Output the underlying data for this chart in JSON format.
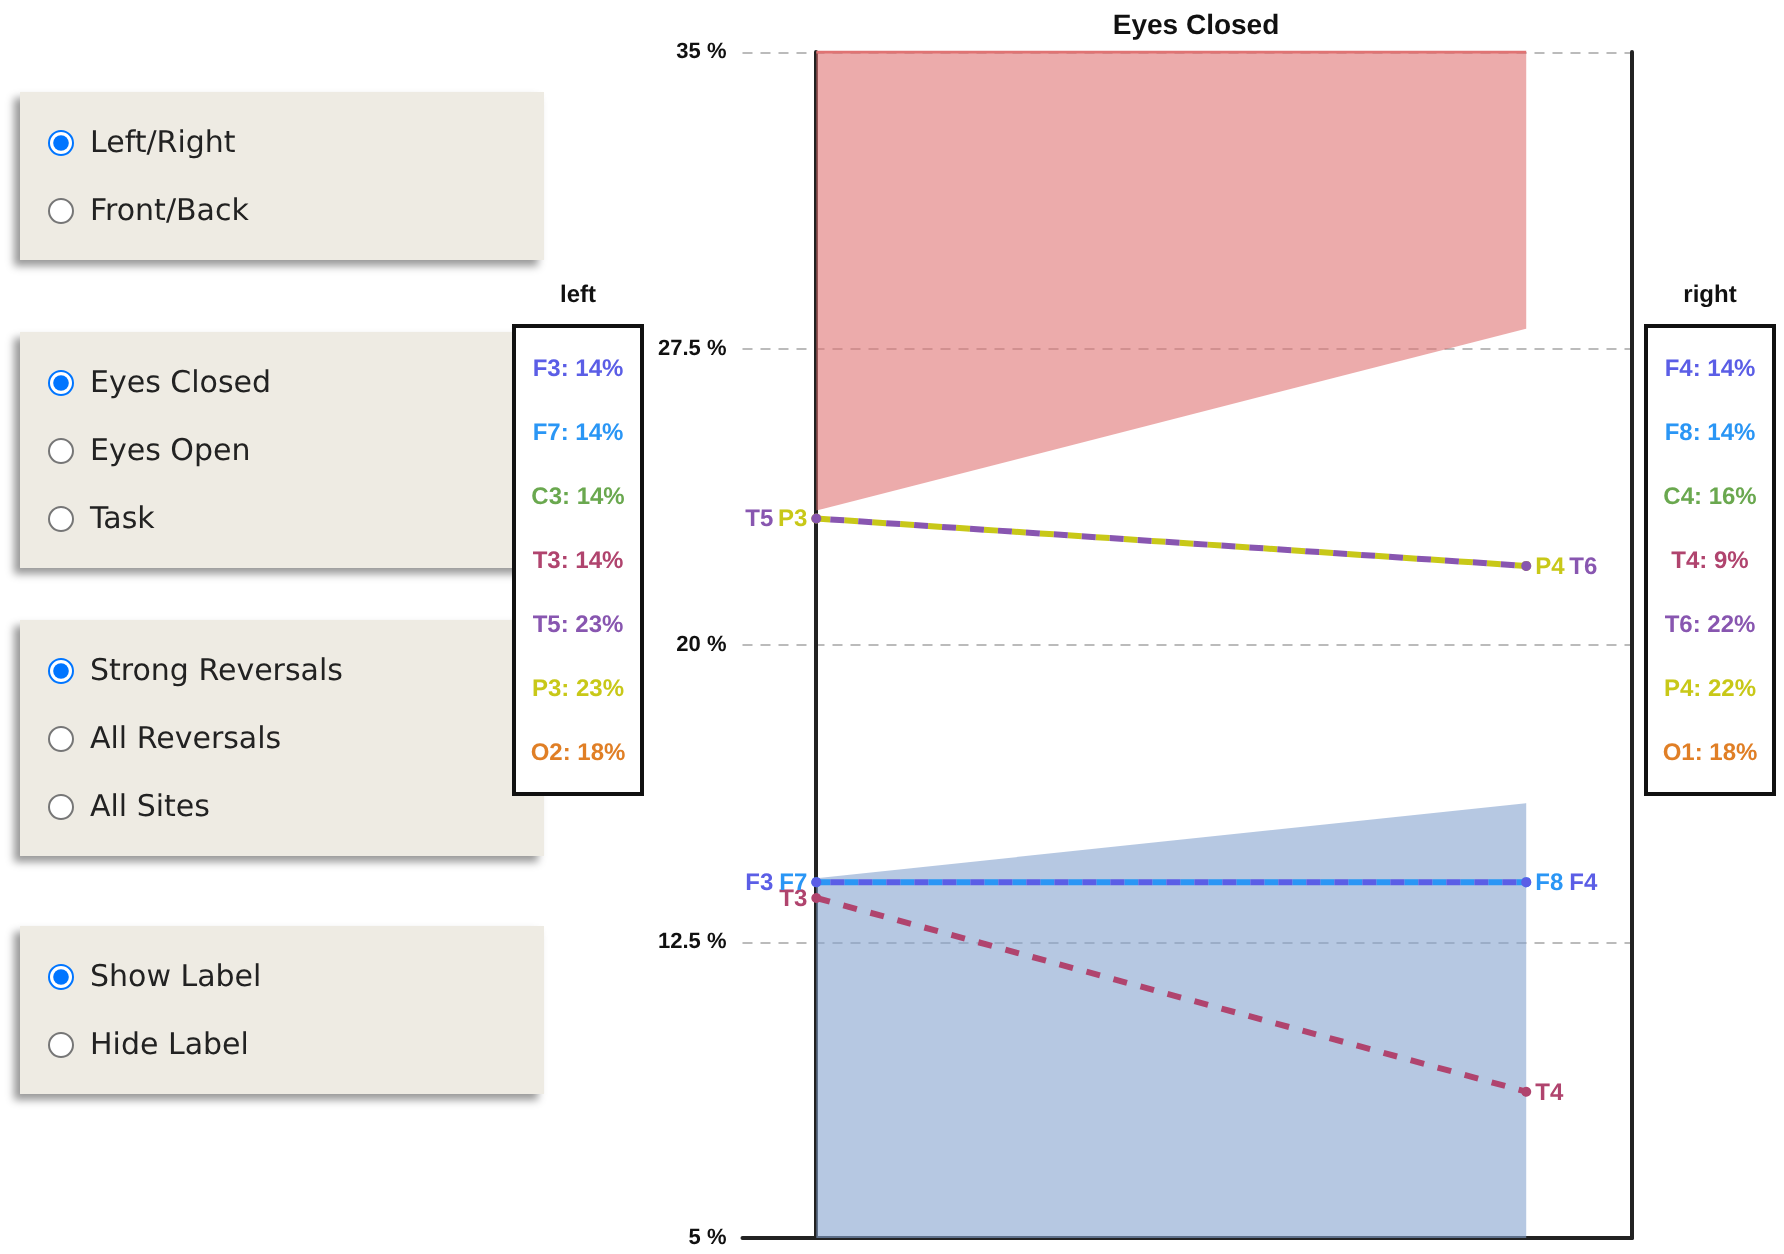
{
  "chart_data": [
    {
      "type": "other",
      "annotations": [
        "Left/Right",
        "Front/Back"
      ]
    },
    {
      "type": "other",
      "annotations": [
        "Eyes Closed",
        "Eyes Open",
        "Task"
      ]
    },
    {
      "type": "other",
      "annotations": [
        "Strong Reversals",
        "All Reversals",
        "All Sites"
      ]
    },
    {
      "type": "other",
      "annotations": [
        "Show Label",
        "Hide Label"
      ]
    },
    {
      "type": "other",
      "title": "left",
      "annotations": [
        "F3: 14%",
        "F7: 14%",
        "C3: 14%",
        "T3: 14%",
        "T5: 23%",
        "P3: 23%",
        "O2: 18%"
      ],
      "colors": [
        "#5b5ee6",
        "#2a96f5",
        "#6aa84f",
        "#b0446e",
        "#8856b0",
        "#c8c818",
        "#e07f26"
      ]
    },
    {
      "type": "line",
      "title": "Eyes Closed",
      "categories": [
        null,
        null
      ],
      "ylim": [
        5,
        35
      ],
      "yticks": [
        {
          "value": 5,
          "label": "5 %"
        },
        {
          "value": 12.5,
          "label": "12.5 %"
        },
        {
          "value": 20,
          "label": "20 %"
        },
        {
          "value": 27.5,
          "label": "27.5 %"
        },
        {
          "value": 35,
          "label": "35 %"
        }
      ],
      "grid": "y",
      "marker": "circle",
      "line_style": "dashed",
      "series": [
        {
          "type": "line",
          "color": "#e07373",
          "marker": "none",
          "line_style": "solid",
          "values": [
            35,
            35
          ],
          "lower": [
            23.4,
            28.0
          ],
          "upper": [
            35,
            35
          ]
        },
        {
          "type": "area",
          "color": "#86a4ce",
          "marker": "none",
          "values": [
            14.1,
            16.0
          ]
        },
        {
          "color": "#5b5ee6",
          "values": [
            14,
            14
          ],
          "value_labels": [
            "F3",
            "F4"
          ]
        },
        {
          "color": "#2a96f5",
          "values": [
            14,
            14
          ],
          "value_labels": [
            "F7",
            "F8"
          ]
        },
        {
          "color": "#b0446e",
          "values": [
            13.6,
            8.7
          ],
          "value_labels": [
            "T3",
            "T4"
          ]
        },
        {
          "color": "#8856b0",
          "values": [
            23.2,
            22.0
          ],
          "value_labels": [
            "T5",
            "T6"
          ]
        },
        {
          "color": "#c8c818",
          "values": [
            23.2,
            22.0
          ],
          "value_labels": [
            "P3",
            "P4"
          ]
        }
      ]
    },
    {
      "type": "other",
      "title": "right",
      "annotations": [
        "F4: 14%",
        "F8: 14%",
        "C4: 16%",
        "T4: 9%",
        "T6: 22%",
        "P4: 22%",
        "O1: 18%"
      ],
      "colors": [
        "#5b5ee6",
        "#2a96f5",
        "#6aa84f",
        "#b0446e",
        "#8856b0",
        "#c8c818",
        "#e07f26"
      ]
    }
  ]
}
